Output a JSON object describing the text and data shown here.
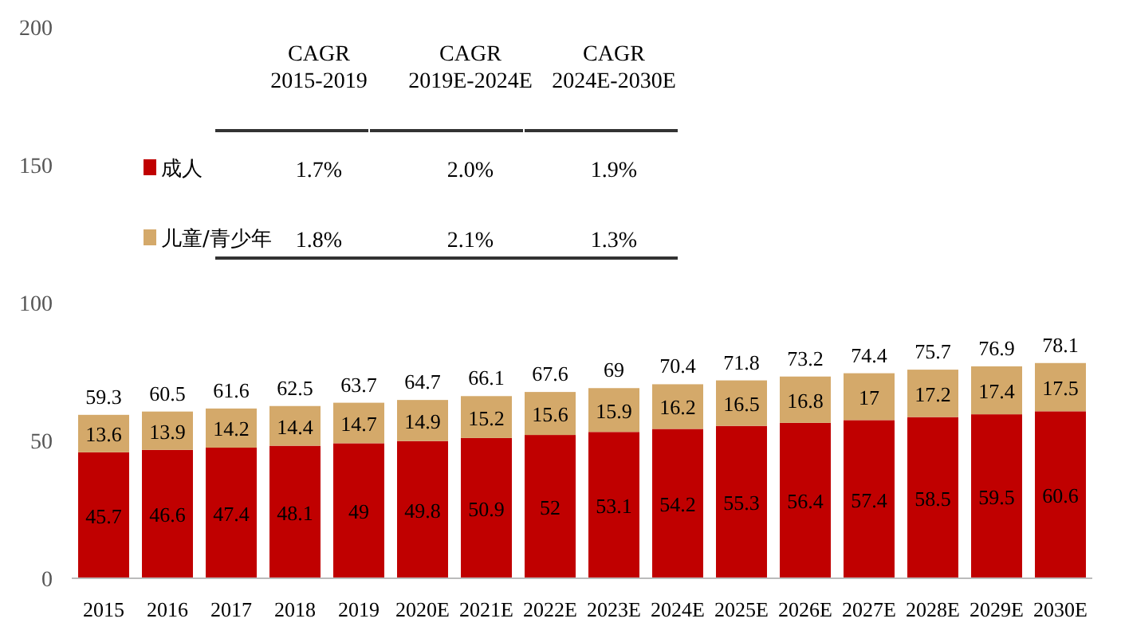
{
  "chart_data": {
    "type": "bar",
    "stacked": true,
    "categories": [
      "2015",
      "2016",
      "2017",
      "2018",
      "2019",
      "2020E",
      "2021E",
      "2022E",
      "2023E",
      "2024E",
      "2025E",
      "2026E",
      "2027E",
      "2028E",
      "2029E",
      "2030E"
    ],
    "series": [
      {
        "name": "成人",
        "color": "#c00000",
        "values": [
          45.7,
          46.6,
          47.4,
          48.1,
          49,
          49.8,
          50.9,
          52,
          53.1,
          54.2,
          55.3,
          56.4,
          57.4,
          58.5,
          59.5,
          60.6
        ]
      },
      {
        "name": "儿童/青少年",
        "color": "#d4a96a",
        "values": [
          13.6,
          13.9,
          14.2,
          14.4,
          14.7,
          14.9,
          15.2,
          15.6,
          15.9,
          16.2,
          16.5,
          16.8,
          17,
          17.2,
          17.4,
          17.5
        ]
      }
    ],
    "totals": [
      "59.3",
      "60.5",
      "61.6",
      "62.5",
      "63.7",
      "64.7",
      "66.1",
      "67.6",
      "69",
      "70.4",
      "71.8",
      "73.2",
      "74.4",
      "75.7",
      "76.9",
      "78.1"
    ],
    "data_labels": true,
    "ylim": [
      0,
      200
    ],
    "yticks": [
      0,
      50,
      100,
      150,
      200
    ],
    "grid": false,
    "legend": "top left",
    "annotations": [
      "CAGR 2015-2019",
      "CAGR 2019E-2024E",
      "CAGR 2024E-2030E",
      "1.7%",
      "2.0%",
      "1.9%",
      "1.8%",
      "2.1%",
      "1.3%"
    ]
  }
}
